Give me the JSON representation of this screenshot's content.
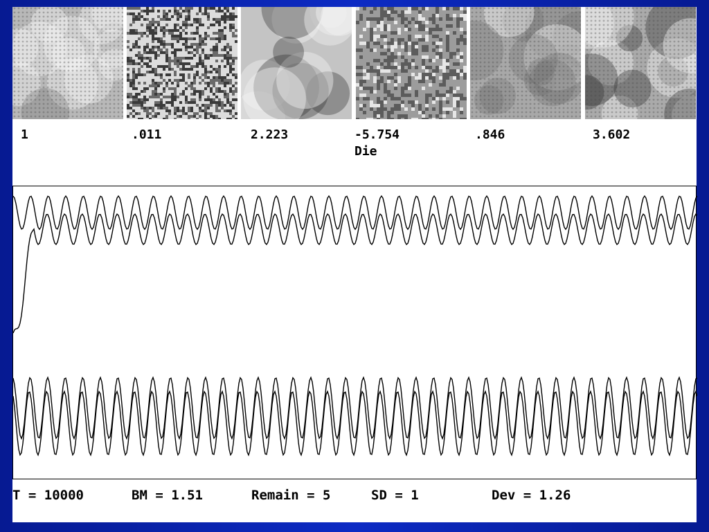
{
  "panels": [
    {
      "value": "1",
      "style": "rings"
    },
    {
      "value": ".011",
      "style": "static"
    },
    {
      "value": "2.223",
      "style": "blotch"
    },
    {
      "value": "-5.754",
      "style": "speckle"
    },
    {
      "value": ".846",
      "style": "soft"
    },
    {
      "value": "3.602",
      "style": "dark"
    }
  ],
  "die_label": "Die",
  "status": {
    "t": "T = 10000",
    "bm": "BM = 1.51",
    "remain": "Remain = 5",
    "sd": "SD = 1",
    "dev": "Dev = 1.26"
  },
  "traces": {
    "upper_cycles": 39,
    "lower_cycles": 39
  }
}
